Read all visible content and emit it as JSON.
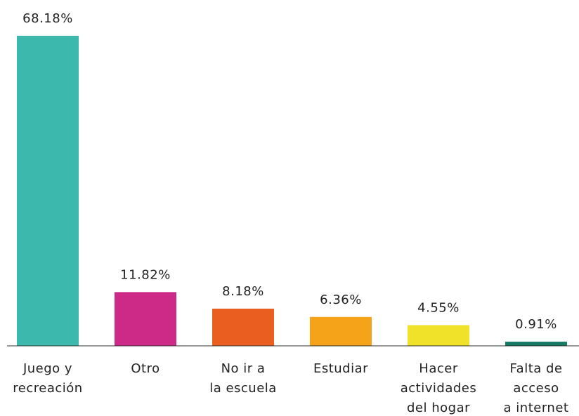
{
  "chart_data": {
    "type": "bar",
    "categories": [
      [
        "Juego y",
        "recreación"
      ],
      [
        "Otro"
      ],
      [
        "No ir a",
        "la escuela"
      ],
      [
        "Estudiar"
      ],
      [
        "Hacer",
        "actividades",
        "del hogar"
      ],
      [
        "Falta de",
        "acceso",
        "a internet"
      ]
    ],
    "values": [
      68.18,
      11.82,
      8.18,
      6.36,
      4.55,
      0.91
    ],
    "value_labels": [
      "68.18%",
      "11.82%",
      "8.18%",
      "6.36%",
      "4.55%",
      "0.91%"
    ],
    "colors": [
      "#3db8ad",
      "#cc2a86",
      "#ea5e20",
      "#f5a318",
      "#f0e228",
      "#137a63"
    ]
  }
}
